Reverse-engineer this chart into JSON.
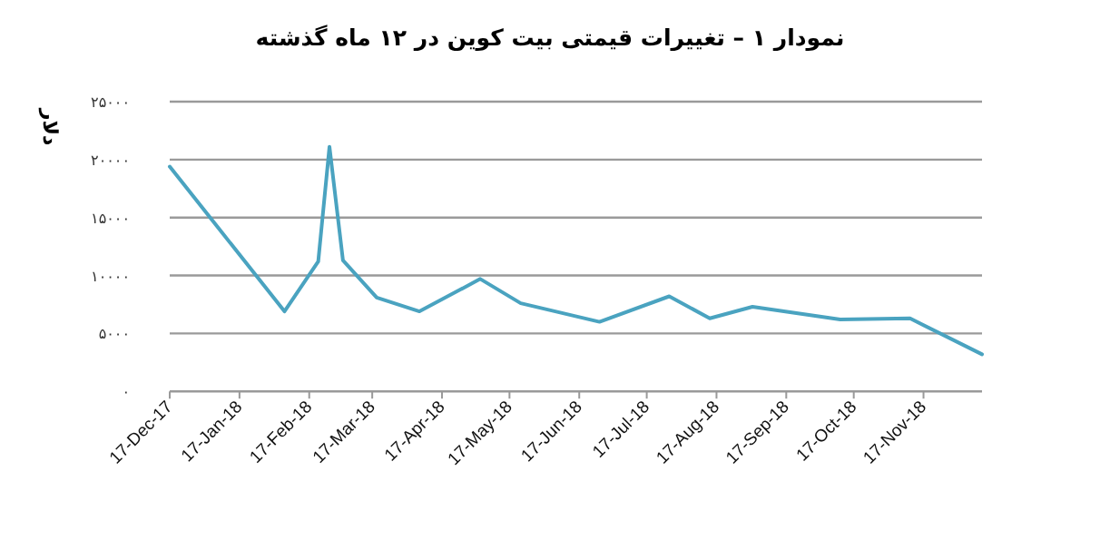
{
  "chart_data": {
    "type": "line",
    "title": "نمودار ۱ – تغییرات قیمتی بیت کوین در ۱۲ ماه گذشته",
    "ylabel": "دلار",
    "x": [
      "2017-12-17",
      "2018-02-06",
      "2018-02-21",
      "2018-02-26",
      "2018-03-04",
      "2018-03-19",
      "2018-04-07",
      "2018-05-04",
      "2018-05-22",
      "2018-06-26",
      "2018-07-27",
      "2018-08-14",
      "2018-09-02",
      "2018-10-11",
      "2018-11-11",
      "2018-12-13"
    ],
    "values": [
      19400,
      6900,
      11200,
      21100,
      11300,
      8100,
      6900,
      9700,
      7600,
      6000,
      8200,
      6300,
      7300,
      6200,
      6300,
      3200
    ],
    "color": "#4aa3c0",
    "line_style": "solid",
    "grid": "y",
    "xlim": [
      "2017-12-17",
      "2018-12-13"
    ],
    "xticks": [
      {
        "value": "2017-12-17",
        "label": "17-Dec-17"
      },
      {
        "value": "2018-01-17",
        "label": "17-Jan-18"
      },
      {
        "value": "2018-02-17",
        "label": "17-Feb-18"
      },
      {
        "value": "2018-03-17",
        "label": "17-Mar-18"
      },
      {
        "value": "2018-04-17",
        "label": "17-Apr-18"
      },
      {
        "value": "2018-05-17",
        "label": "17-May-18"
      },
      {
        "value": "2018-06-17",
        "label": "17-Jun-18"
      },
      {
        "value": "2018-07-17",
        "label": "17-Jul-18"
      },
      {
        "value": "2018-08-17",
        "label": "17-Aug-18"
      },
      {
        "value": "2018-09-17",
        "label": "17-Sep-18"
      },
      {
        "value": "2018-10-17",
        "label": "17-Oct-18"
      },
      {
        "value": "2018-11-17",
        "label": "17-Nov-18"
      }
    ],
    "ylim": [
      0,
      25000
    ],
    "yticks": [
      {
        "value": 0,
        "label": "۰"
      },
      {
        "value": 5000,
        "label": "۵۰۰۰"
      },
      {
        "value": 10000,
        "label": "۱۰۰۰۰"
      },
      {
        "value": 15000,
        "label": "۱۵۰۰۰"
      },
      {
        "value": 20000,
        "label": "۲۰۰۰۰"
      },
      {
        "value": 25000,
        "label": "۲۵۰۰۰"
      }
    ]
  }
}
